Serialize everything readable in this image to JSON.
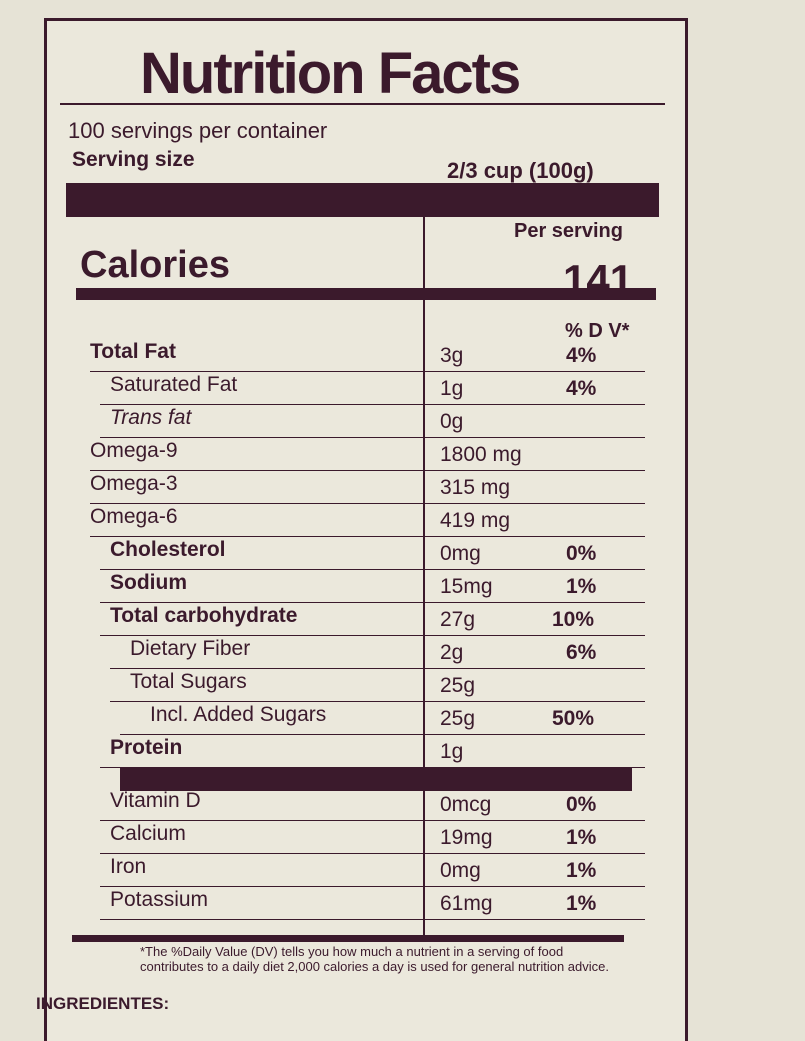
{
  "header": {
    "title": "Nutrition Facts",
    "servings": "100 servings per container",
    "serving_size_label": "Serving size",
    "serving_size": "2/3 cup (100g)"
  },
  "calories": {
    "per_serving": "Per serving",
    "label": "Calories",
    "value": "141"
  },
  "table": {
    "dv_header": "% D V*",
    "rows": [
      {
        "name": "Total Fat",
        "amount": "3g",
        "dv": "4%"
      },
      {
        "name": "Saturated Fat",
        "amount": "1g",
        "dv": "4%"
      },
      {
        "name": "Trans fat",
        "amount": "0g"
      },
      {
        "name": "Omega-9",
        "amount": "1800 mg"
      },
      {
        "name": "Omega-3",
        "amount": "315 mg"
      },
      {
        "name": "Omega-6",
        "amount": "419 mg"
      },
      {
        "name": "Cholesterol",
        "amount": "0mg",
        "dv": "0%"
      },
      {
        "name": "Sodium",
        "amount": "15mg",
        "dv": "1%"
      },
      {
        "name": "Total carbohydrate",
        "amount": "27g",
        "dv": "10%"
      },
      {
        "name": "Dietary Fiber",
        "amount": "2g",
        "dv": "6%"
      },
      {
        "name": "Total Sugars",
        "amount": "25g"
      },
      {
        "name": "Incl. Added Sugars",
        "amount": "25g",
        "dv": "50%"
      },
      {
        "name": "Protein",
        "amount": "1g"
      },
      {
        "name": "Vitamin D",
        "amount": "0mcg",
        "dv": "0%"
      },
      {
        "name": "Calcium",
        "amount": "19mg",
        "dv": "1%"
      },
      {
        "name": "Iron",
        "amount": "0mg",
        "dv": "1%"
      },
      {
        "name": "Potassium",
        "amount": "61mg",
        "dv": "1%"
      }
    ]
  },
  "footnote": "*The %Daily Value (DV) tells you how much a nutrient in a serving of food contributes to a daily diet 2,000 calories a day is used for general nutrition advice.",
  "ingredients": "INGREDIENTES:"
}
